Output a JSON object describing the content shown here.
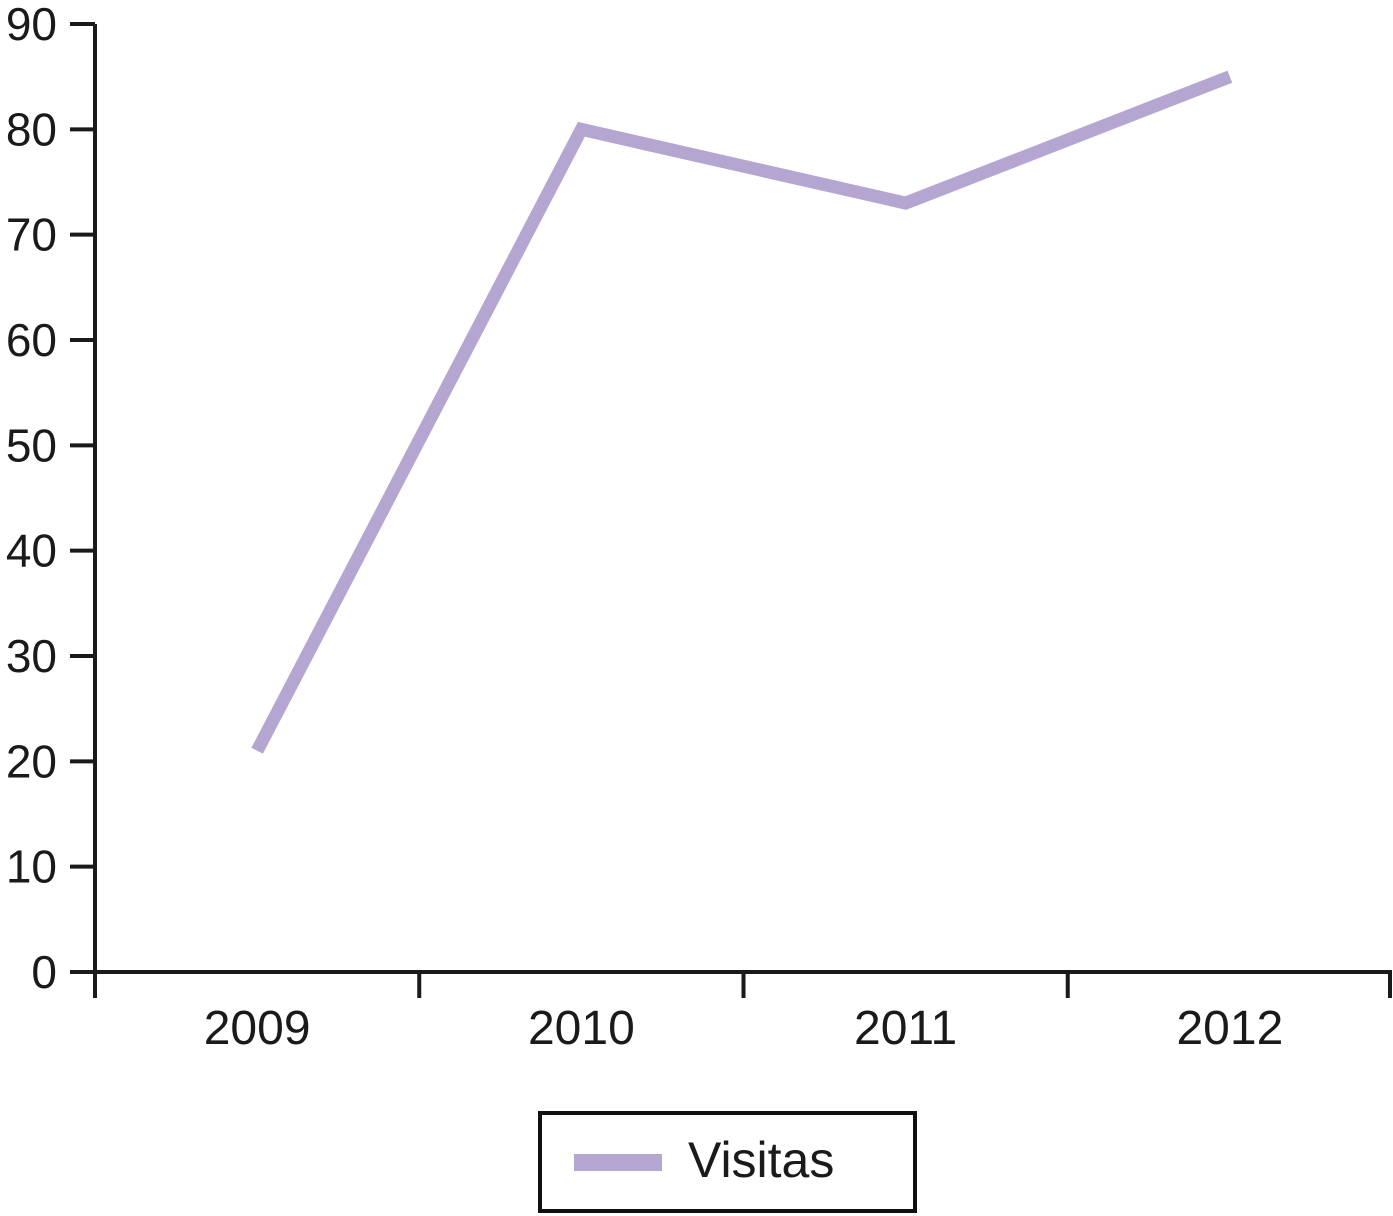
{
  "chart_data": {
    "type": "line",
    "categories": [
      "2009",
      "2010",
      "2011",
      "2012"
    ],
    "series": [
      {
        "name": "Visitas",
        "values": [
          21,
          80,
          73,
          85
        ]
      }
    ],
    "title": "",
    "xlabel": "",
    "ylabel": "",
    "ylim": [
      0,
      90
    ],
    "ytick_step": 10,
    "ytick_labels": [
      "0",
      "10",
      "20",
      "30",
      "40",
      "50",
      "60",
      "70",
      "80",
      "90"
    ],
    "grid": false,
    "legend_position": "bottom-center",
    "colors": {
      "line": "#b5a6d1",
      "axis": "#1a1a1a",
      "text": "#1a1a1a",
      "background": "#ffffff",
      "legend_border": "#111111"
    }
  }
}
